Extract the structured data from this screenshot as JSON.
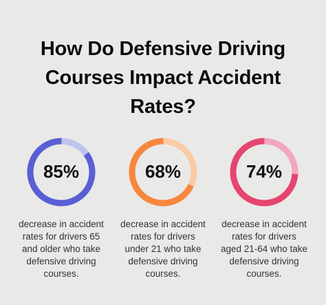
{
  "title_lines": [
    "How Do Defensive Driving",
    "Courses Impact Accident",
    "Rates?"
  ],
  "chart_data": [
    {
      "type": "pie",
      "value": 85,
      "label": "85%",
      "description_lines": [
        "decrease in accident",
        "rates for drivers 65",
        "and older who take",
        "defensive driving",
        "courses."
      ],
      "color": "#5a5fd4",
      "track_color": "#bfc3ee"
    },
    {
      "type": "pie",
      "value": 68,
      "label": "68%",
      "description_lines": [
        "decrease in accident",
        "rates for drivers",
        "under 21 who take",
        "defensive driving",
        "courses."
      ],
      "color": "#f7873e",
      "track_color": "#fbcba6"
    },
    {
      "type": "pie",
      "value": 74,
      "label": "74%",
      "description_lines": [
        "decrease in accident",
        "rates for drivers",
        "aged 21-64 who take",
        "defensive driving",
        "courses."
      ],
      "color": "#e4466f",
      "track_color": "#f3a7bf"
    }
  ]
}
